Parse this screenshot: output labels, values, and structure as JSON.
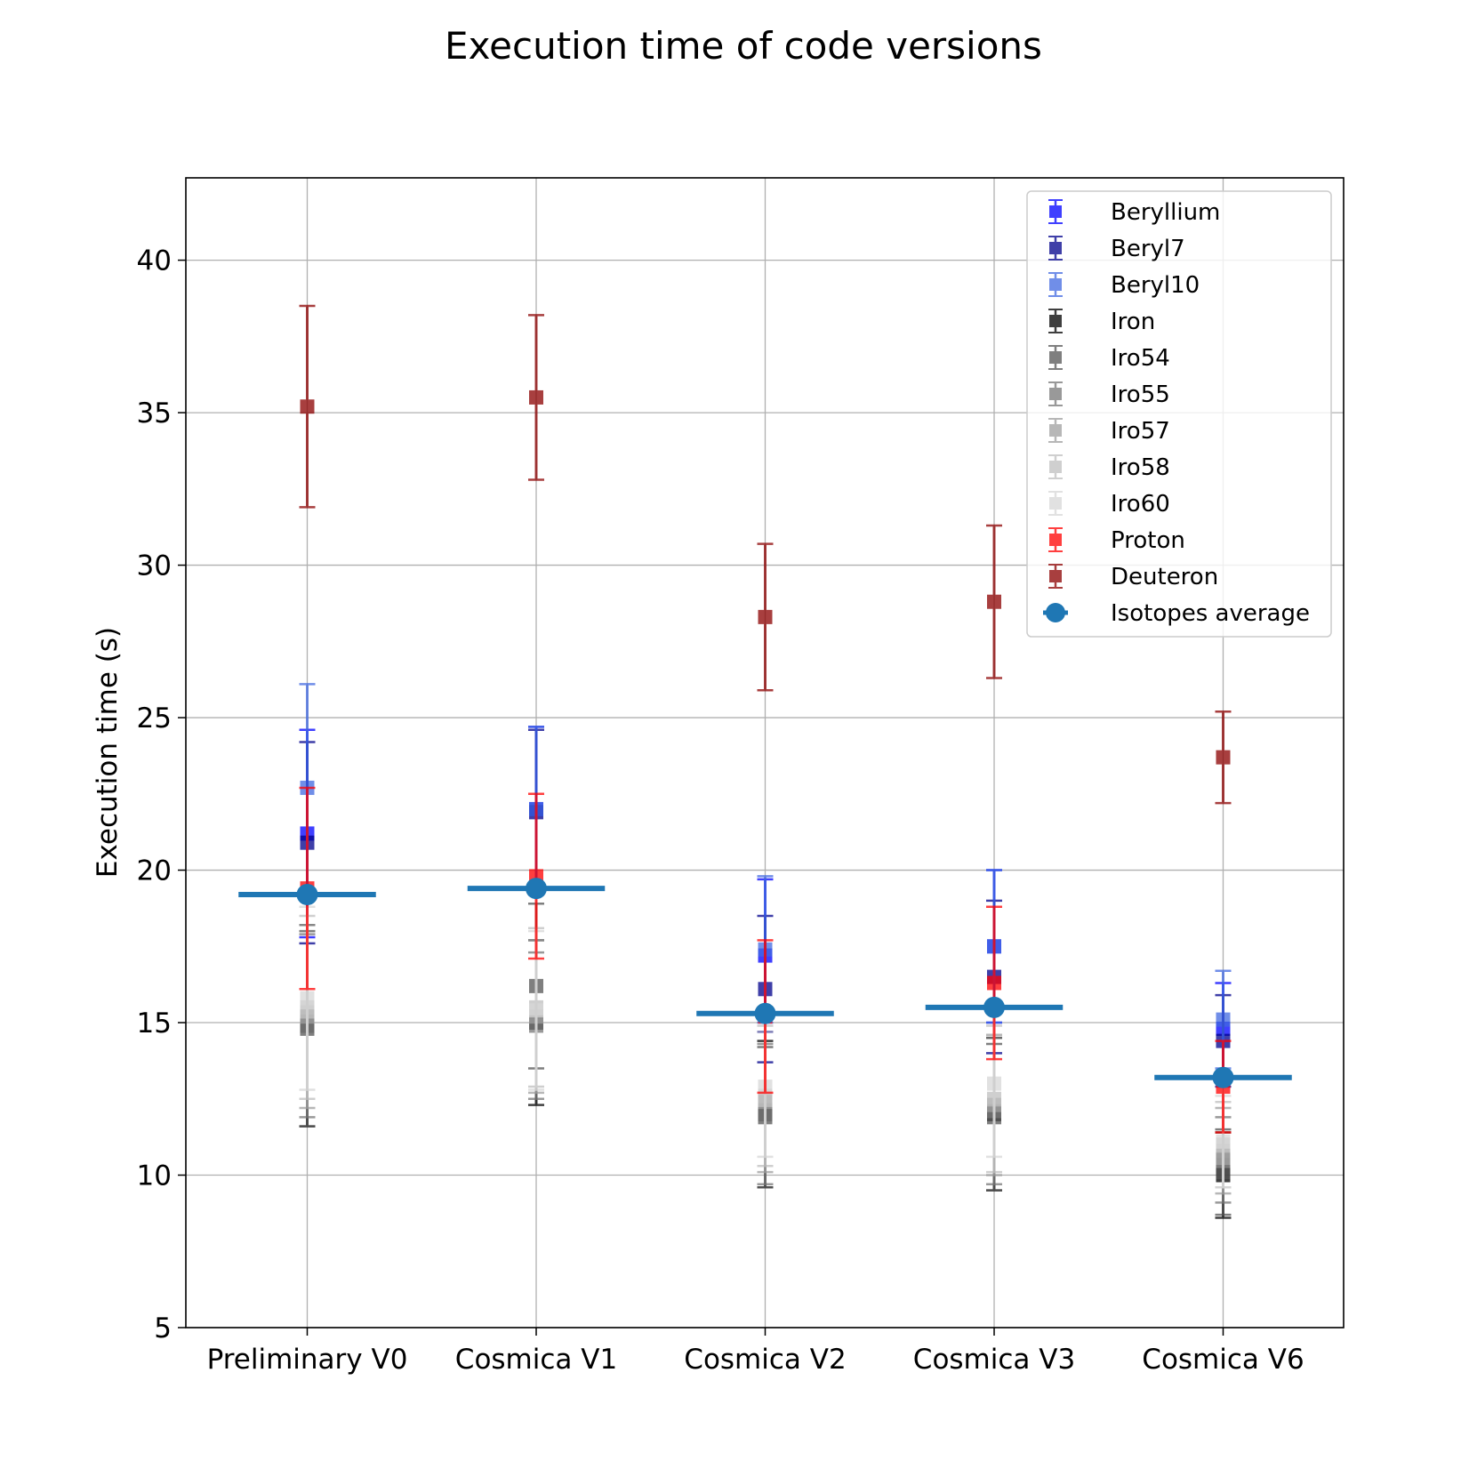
{
  "chart_data": {
    "type": "scatter",
    "title": "Execution time of code versions",
    "xlabel": "",
    "ylabel": "Execution time (s)",
    "categories": [
      "Preliminary V0",
      "Cosmica V1",
      "Cosmica V2",
      "Cosmica V3",
      "Cosmica V6"
    ],
    "ylim": [
      5,
      42.7
    ],
    "yticks": [
      5,
      10,
      15,
      20,
      25,
      30,
      35,
      40
    ],
    "grid": true,
    "legend_position": "top-right",
    "series": [
      {
        "name": "Beryllium",
        "color": "#0000ff",
        "alpha": 0.75,
        "marker": "square",
        "values": [
          21.2,
          22.0,
          17.2,
          17.5,
          14.8
        ],
        "errors": [
          3.4,
          2.7,
          2.5,
          2.5,
          1.5
        ]
      },
      {
        "name": "Beryl7",
        "color": "#00008b",
        "alpha": 0.75,
        "marker": "square",
        "values": [
          20.9,
          21.9,
          16.1,
          16.5,
          14.4
        ],
        "errors": [
          3.3,
          2.7,
          2.4,
          2.5,
          1.5
        ]
      },
      {
        "name": "Beryl10",
        "color": "#4169e1",
        "alpha": 0.75,
        "marker": "square",
        "values": [
          22.7,
          22.0,
          17.4,
          17.5,
          15.1
        ],
        "errors": [
          3.4,
          2.7,
          2.4,
          2.5,
          1.6
        ]
      },
      {
        "name": "Iron",
        "color": "#000000",
        "alpha": 0.75,
        "marker": "square",
        "values": [
          14.9,
          15.0,
          12.0,
          12.0,
          10.0
        ],
        "errors": [
          3.3,
          2.7,
          2.4,
          2.5,
          1.4
        ]
      },
      {
        "name": "Iro54",
        "color": "#555555",
        "alpha": 0.75,
        "marker": "square",
        "values": [
          14.8,
          16.2,
          11.9,
          11.9,
          10.1
        ],
        "errors": [
          3.2,
          2.7,
          2.3,
          2.4,
          1.4
        ]
      },
      {
        "name": "Iro55",
        "color": "#777777",
        "alpha": 0.75,
        "marker": "square",
        "values": [
          14.9,
          14.9,
          12.0,
          12.1,
          10.5
        ],
        "errors": [
          3.0,
          2.4,
          2.3,
          2.4,
          1.4
        ]
      },
      {
        "name": "Iro57",
        "color": "#a0a0a0",
        "alpha": 0.75,
        "marker": "square",
        "values": [
          15.2,
          15.2,
          12.4,
          12.3,
          10.8
        ],
        "errors": [
          3.0,
          2.5,
          2.3,
          2.3,
          1.4
        ]
      },
      {
        "name": "Iro58",
        "color": "#c0c0c0",
        "alpha": 0.75,
        "marker": "square",
        "values": [
          15.5,
          15.5,
          12.6,
          12.5,
          11.0
        ],
        "errors": [
          3.0,
          2.6,
          2.3,
          2.4,
          1.4
        ]
      },
      {
        "name": "Iro60",
        "color": "#d8d8d8",
        "alpha": 0.75,
        "marker": "square",
        "values": [
          15.8,
          15.4,
          12.9,
          13.0,
          11.1
        ],
        "errors": [
          3.0,
          2.6,
          2.3,
          2.4,
          1.5
        ]
      },
      {
        "name": "Proton",
        "color": "#ff0000",
        "alpha": 0.75,
        "marker": "square",
        "values": [
          19.4,
          19.8,
          15.2,
          16.3,
          12.9
        ],
        "errors": [
          3.3,
          2.7,
          2.5,
          2.5,
          1.5
        ]
      },
      {
        "name": "Deuteron",
        "color": "#8b0000",
        "alpha": 0.75,
        "marker": "square",
        "values": [
          35.2,
          35.5,
          28.3,
          28.8,
          23.7
        ],
        "errors": [
          3.3,
          2.7,
          2.4,
          2.5,
          1.5
        ]
      },
      {
        "name": "Isotopes average",
        "color": "#1f77b4",
        "alpha": 1.0,
        "marker": "circle",
        "values": [
          19.2,
          19.4,
          15.3,
          15.5,
          13.2
        ],
        "xerror": 0.3
      }
    ]
  }
}
